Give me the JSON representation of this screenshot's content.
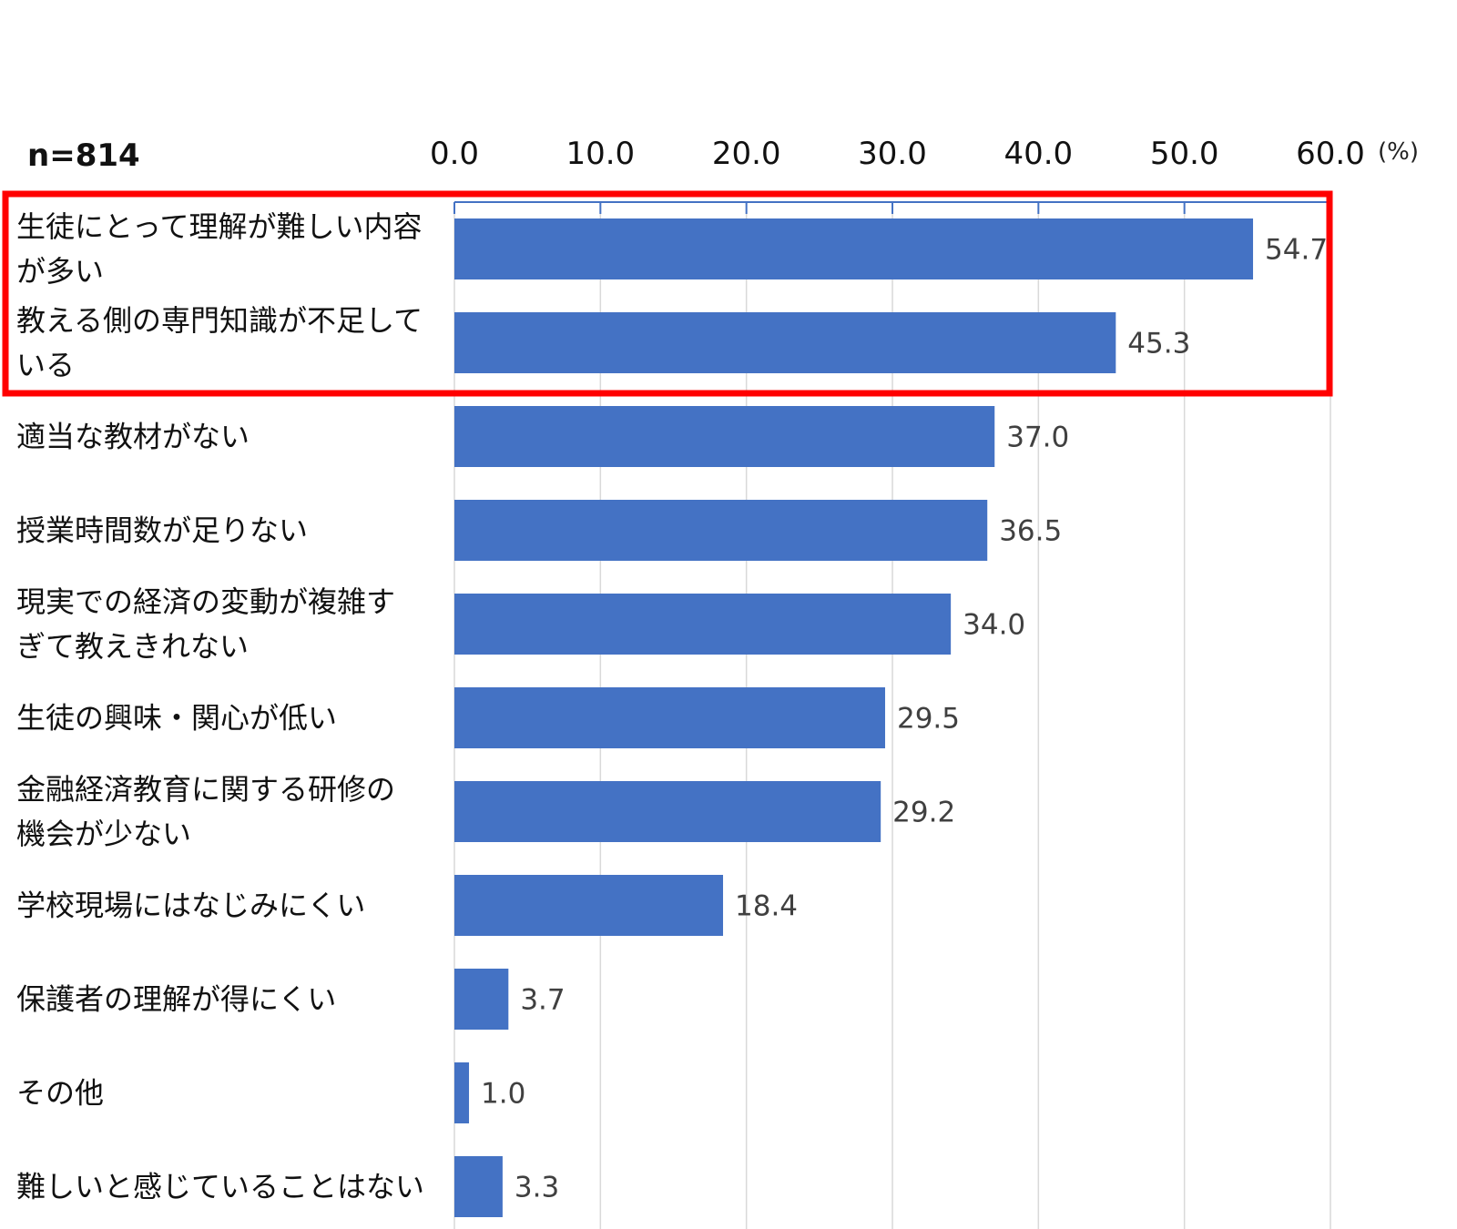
{
  "chart_data": {
    "type": "bar",
    "orientation": "horizontal",
    "sample_label": "n=814",
    "unit": "(%)",
    "xlim": [
      0,
      60
    ],
    "ticks": [
      "0.0",
      "10.0",
      "20.0",
      "30.0",
      "40.0",
      "50.0",
      "60.0"
    ],
    "grid": true,
    "categories": [
      [
        "生徒にとって理解が難しい内容",
        "が多い"
      ],
      [
        "教える側の専門知識が不足して",
        "いる"
      ],
      [
        "適当な教材がない"
      ],
      [
        "授業時間数が足りない"
      ],
      [
        "現実での経済の変動が複雑す",
        "ぎて教えきれない"
      ],
      [
        "生徒の興味・関心が低い"
      ],
      [
        "金融経済教育に関する研修の",
        "機会が少ない"
      ],
      [
        "学校現場にはなじみにくい"
      ],
      [
        "保護者の理解が得にくい"
      ],
      [
        "その他"
      ],
      [
        "難しいと感じていることはない"
      ]
    ],
    "values": [
      54.7,
      45.3,
      37.0,
      36.5,
      34.0,
      29.5,
      29.2,
      18.4,
      3.7,
      1.0,
      3.3
    ],
    "value_labels": [
      "54.7",
      "45.3",
      "37.0",
      "36.5",
      "34.0",
      "29.5",
      "29.2",
      "18.4",
      "3.7",
      "1.0",
      "3.3"
    ],
    "highlight_rows": [
      0,
      1
    ]
  },
  "colors": {
    "bar": "#4472C4",
    "grid": "#D9D9D9",
    "axis": "#4472C4",
    "highlight": "#FF0000"
  }
}
